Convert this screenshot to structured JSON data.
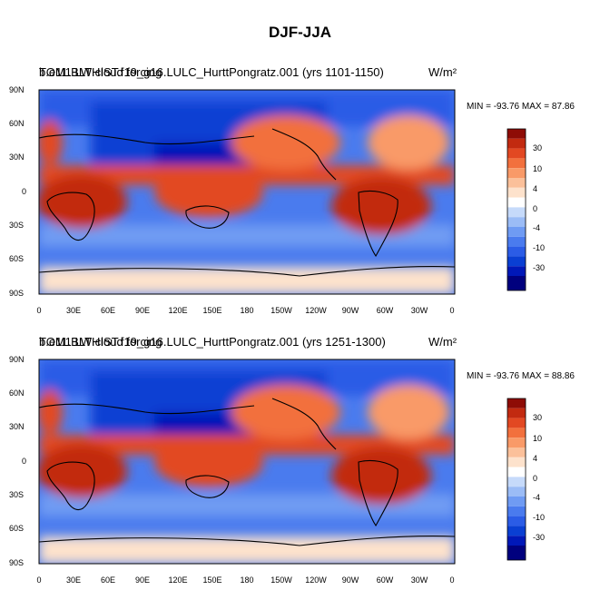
{
  "figure": {
    "title": "DJF-JJA",
    "colormap": [
      "#00007e",
      "#0018b8",
      "#0a3fd3",
      "#2b5ce6",
      "#4a7bee",
      "#6f9bf3",
      "#9bbcf6",
      "#c6dafa",
      "#ffffff",
      "#fde2cc",
      "#fbc09a",
      "#f99a68",
      "#f2703d",
      "#e24822",
      "#c22a10",
      "#8e0c06"
    ]
  },
  "panels": [
    {
      "id": "top",
      "left_title": "TOM1 LW cloud forcing",
      "case_title": "b.e11.BLTHIST.f19_g16.LULC_HurttPongratz.001 (yrs 1101-1150)",
      "units": "W/m²",
      "min_max": "MIN = -93.76 MAX =  87.86",
      "lat_labels": [
        "90N",
        "60N",
        "30N",
        "0",
        "30S",
        "60S",
        "90S"
      ],
      "lon_labels": [
        "0",
        "30E",
        "60E",
        "90E",
        "120E",
        "150E",
        "180",
        "150W",
        "120W",
        "90W",
        "60W",
        "30W",
        "0"
      ],
      "colorbar_labels": [
        "30",
        "10",
        "4",
        "0",
        "-4",
        "-10",
        "-30"
      ]
    },
    {
      "id": "bottom",
      "left_title": "TOM1 LW cloud forcing",
      "case_title": "b.e11.BLTHIST.f19_g16.LULC_HurttPongratz.001 (yrs 1251-1300)",
      "units": "W/m²",
      "min_max": "MIN = -93.76 MAX =  88.86",
      "lat_labels": [
        "90N",
        "60N",
        "30N",
        "0",
        "30S",
        "60S",
        "90S"
      ],
      "lon_labels": [
        "0",
        "30E",
        "60E",
        "90E",
        "120E",
        "150E",
        "180",
        "150W",
        "120W",
        "90W",
        "60W",
        "30W",
        "0"
      ],
      "colorbar_labels": [
        "30",
        "10",
        "4",
        "0",
        "-4",
        "-10",
        "-30"
      ]
    }
  ]
}
